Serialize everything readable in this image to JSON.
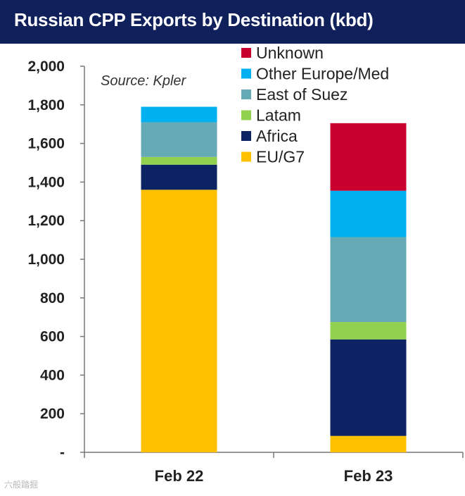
{
  "header": {
    "title": "Russian CPP Exports by Destination (kbd)"
  },
  "watermark": "六般踏掘",
  "chart_data": {
    "type": "bar",
    "stacked": true,
    "title": "Russian CPP Exports by Destination (kbd)",
    "source": "Source: Kpler",
    "categories": [
      "Feb 22",
      "Feb 23"
    ],
    "series": [
      {
        "name": "EU/G7",
        "color": "#ffc000",
        "values": [
          1360,
          85
        ]
      },
      {
        "name": "Africa",
        "color": "#0e2363",
        "values": [
          130,
          500
        ]
      },
      {
        "name": "Latam",
        "color": "#92d050",
        "values": [
          40,
          90
        ]
      },
      {
        "name": "East of Suez",
        "color": "#66aab5",
        "values": [
          180,
          440
        ]
      },
      {
        "name": "Other Europe/Med",
        "color": "#00b0f0",
        "values": [
          80,
          240
        ]
      },
      {
        "name": "Unknown",
        "color": "#c8002d",
        "values": [
          0,
          350
        ]
      }
    ],
    "ylim": [
      0,
      2000
    ],
    "yticks": [
      0,
      200,
      400,
      600,
      800,
      1000,
      1200,
      1400,
      1600,
      1800,
      2000
    ],
    "ytick_labels": [
      "-",
      "200",
      "400",
      "600",
      "800",
      "1,000",
      "1,200",
      "1,400",
      "1,600",
      "1,800",
      "2,000"
    ],
    "xlabel": "",
    "ylabel": "",
    "legend_order": [
      "Unknown",
      "Other Europe/Med",
      "East of Suez",
      "Latam",
      "Africa",
      "EU/G7"
    ],
    "legend_position": "top-right"
  }
}
